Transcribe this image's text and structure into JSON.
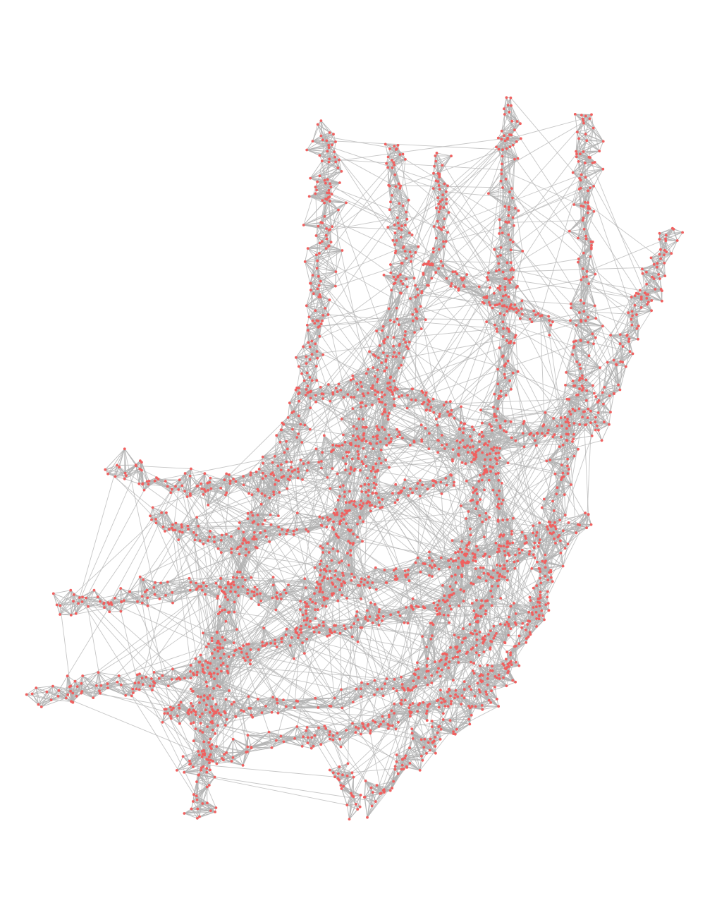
{
  "diagram": {
    "type": "network-graph",
    "edge_color": "#b3b3b3",
    "node_color": "#f0605f",
    "background": "#ffffff",
    "shape": "curved band-like mesh resembling a bent, fibrous structure",
    "title": "",
    "labels": []
  }
}
